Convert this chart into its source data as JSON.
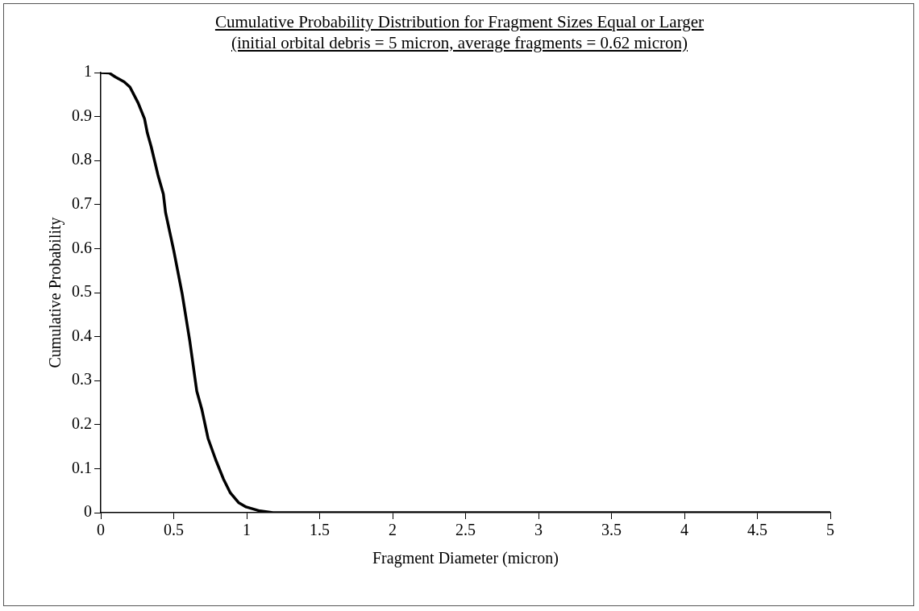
{
  "chart_data": {
    "type": "line",
    "title": "Cumulative Probability Distribution for Fragment Sizes Equal or Larger",
    "subtitle": "(initial orbital debris = 5 micron, average fragments = 0.62 micron)",
    "xlabel": "Fragment Diameter (micron)",
    "ylabel": "Cumulative Probability",
    "x": [
      0,
      0.058,
      0.1,
      0.16,
      0.2,
      0.256,
      0.3,
      0.319,
      0.346,
      0.392,
      0.429,
      0.444,
      0.5,
      0.558,
      0.61,
      0.658,
      0.694,
      0.735,
      0.788,
      0.84,
      0.888,
      0.944,
      0.996,
      1.09,
      1.18,
      2,
      3,
      4,
      5
    ],
    "series": [
      {
        "color": "#000000",
        "values": [
          1,
          0.999,
          0.99,
          0.979,
          0.967,
          0.931,
          0.895,
          0.863,
          0.831,
          0.767,
          0.724,
          0.682,
          0.596,
          0.497,
          0.39,
          0.276,
          0.233,
          0.169,
          0.12,
          0.077,
          0.045,
          0.023,
          0.013,
          0.004,
          0,
          0,
          0,
          0,
          0
        ]
      }
    ],
    "xlim": [
      0,
      5
    ],
    "xticks": [
      0,
      0.5,
      1,
      1.5,
      2,
      2.5,
      3,
      3.5,
      4,
      4.5,
      5
    ],
    "ylim": [
      0,
      1
    ],
    "yticks": [
      0,
      0.1,
      0.2,
      0.3,
      0.4,
      0.5,
      0.6,
      0.7,
      0.8,
      0.9,
      1
    ],
    "grid": false,
    "legend": false,
    "marker": "none",
    "line_style": "solid"
  }
}
